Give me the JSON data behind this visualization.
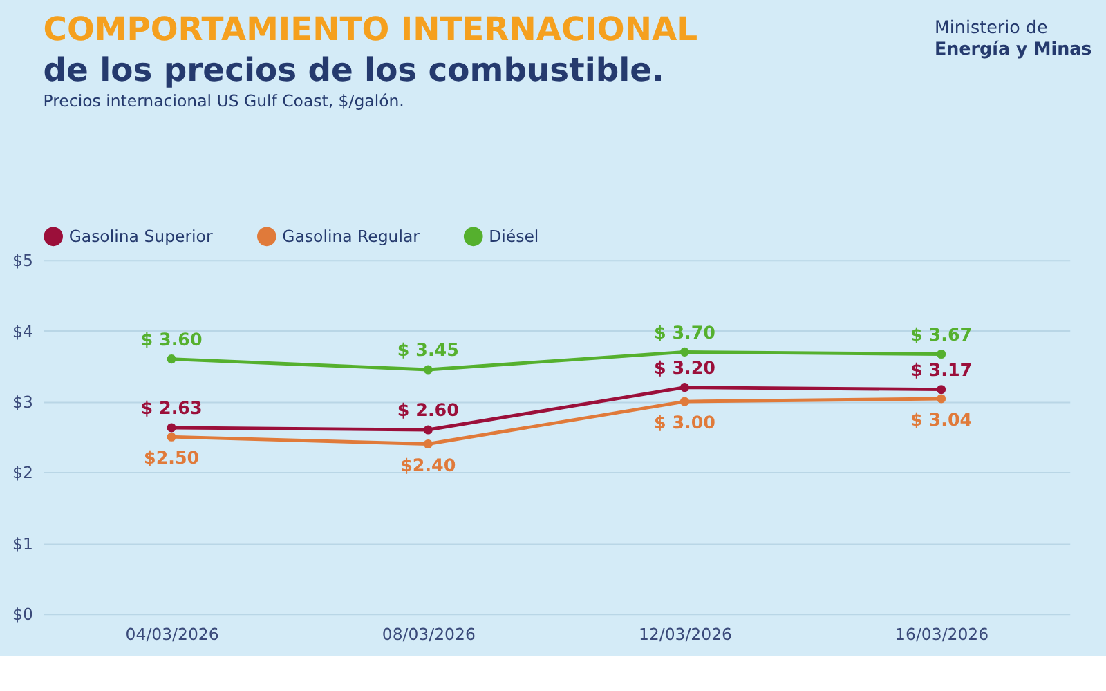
{
  "chart_data": {
    "type": "line",
    "title": "COMPORTAMIENTO INTERNACIONAL",
    "subtitle": "de los precios de los combustible.",
    "annotations": [
      "Precios internacional US Gulf Coast, $/galón.",
      "Ministerio de",
      "Energía y Minas"
    ],
    "categories": [
      "04/03/2026",
      "08/03/2026",
      "12/03/2026",
      "16/03/2026"
    ],
    "series": [
      {
        "name": "Gasolina Superior",
        "color": "#9b0f3a",
        "values": [
          2.63,
          2.6,
          3.2,
          3.17
        ],
        "value_labels": [
          "$ 2.63",
          "$ 2.60",
          "$ 3.20",
          "$ 3.17"
        ]
      },
      {
        "name": "Gasolina Regular",
        "color": "#e07a3a",
        "values": [
          2.5,
          2.4,
          3.0,
          3.04
        ],
        "value_labels": [
          "$2.50",
          "$2.40",
          "$ 3.00",
          "$ 3.04"
        ]
      },
      {
        "name": "Diésel",
        "color": "#55b02e",
        "values": [
          3.6,
          3.45,
          3.7,
          3.67
        ],
        "value_labels": [
          "$ 3.60",
          "$ 3.45",
          "$ 3.70",
          "$ 3.67"
        ]
      }
    ],
    "ylim": [
      0,
      5
    ],
    "yticks": [
      {
        "value": 0,
        "label": "$0"
      },
      {
        "value": 1,
        "label": "$1"
      },
      {
        "value": 2,
        "label": "$2"
      },
      {
        "value": 3,
        "label": "$3"
      },
      {
        "value": 4,
        "label": "$4"
      },
      {
        "value": 5,
        "label": "$5"
      }
    ],
    "grid": "y",
    "legend": "top",
    "marker": "circle",
    "line_style": "solid"
  }
}
